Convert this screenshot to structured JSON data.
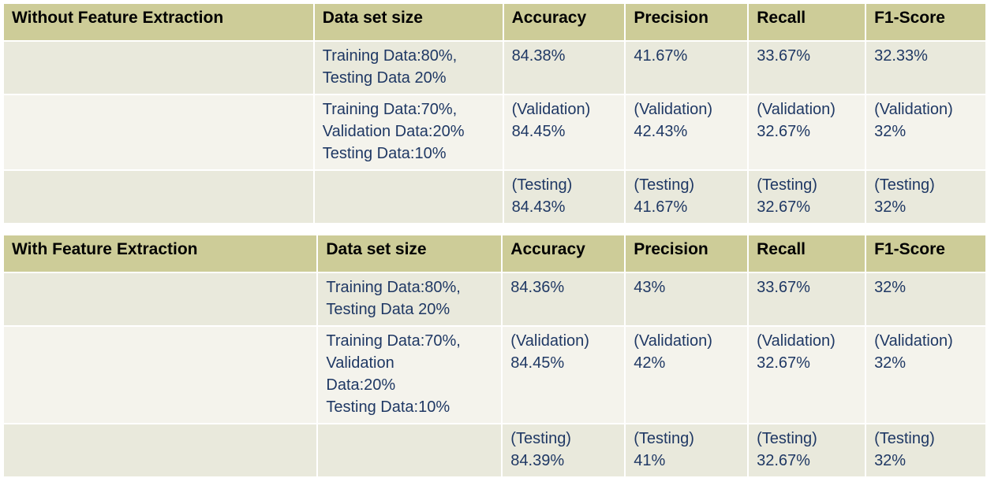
{
  "tables": [
    {
      "header": [
        "Without Feature Extraction",
        "Data set size",
        "Accuracy",
        "Precision",
        "Recall",
        "F1-Score"
      ],
      "rows": [
        {
          "dataset": [
            "Training Data:80%,",
            "Testing Data 20%"
          ],
          "accuracy": [
            "84.38%"
          ],
          "precision": [
            "41.67%"
          ],
          "recall": [
            "33.67%"
          ],
          "f1": [
            "32.33%"
          ]
        },
        {
          "dataset": [
            "Training Data:70%,",
            "Validation Data:20%",
            "Testing Data:10%"
          ],
          "accuracy": [
            "(Validation)",
            "84.45%"
          ],
          "precision": [
            "(Validation)",
            "42.43%"
          ],
          "recall": [
            "(Validation)",
            "32.67%"
          ],
          "f1": [
            "(Validation)",
            "32%"
          ]
        },
        {
          "dataset": [],
          "accuracy": [
            "(Testing)",
            "84.43%"
          ],
          "precision": [
            "(Testing)",
            "41.67%"
          ],
          "recall": [
            "(Testing)",
            "32.67%"
          ],
          "f1": [
            "(Testing)",
            "32%"
          ]
        }
      ]
    },
    {
      "header": [
        "With Feature Extraction",
        "Data set size",
        "Accuracy",
        "Precision",
        "Recall",
        "F1-Score"
      ],
      "rows": [
        {
          "dataset": [
            "Training Data:80%,",
            "Testing Data 20%"
          ],
          "accuracy": [
            "84.36%"
          ],
          "precision": [
            "43%"
          ],
          "recall": [
            "33.67%"
          ],
          "f1": [
            "32%"
          ]
        },
        {
          "dataset": [
            "Training Data:70%,",
            "Validation",
            "Data:20%",
            "Testing Data:10%"
          ],
          "accuracy": [
            "(Validation)",
            "84.45%"
          ],
          "precision": [
            "(Validation)",
            "42%"
          ],
          "recall": [
            "(Validation)",
            "32.67%"
          ],
          "f1": [
            "(Validation)",
            "32%"
          ]
        },
        {
          "dataset": [],
          "accuracy": [
            "(Testing)",
            "84.39%"
          ],
          "precision": [
            "(Testing)",
            "41%"
          ],
          "recall": [
            "(Testing)",
            "32.67%"
          ],
          "f1": [
            "(Testing)",
            "32%"
          ]
        }
      ]
    }
  ],
  "colors": {
    "header_bg": "#cdcc98",
    "row_odd_bg": "#e9e9dc",
    "row_even_bg": "#f4f3ec",
    "value_text": "#1f3864"
  }
}
